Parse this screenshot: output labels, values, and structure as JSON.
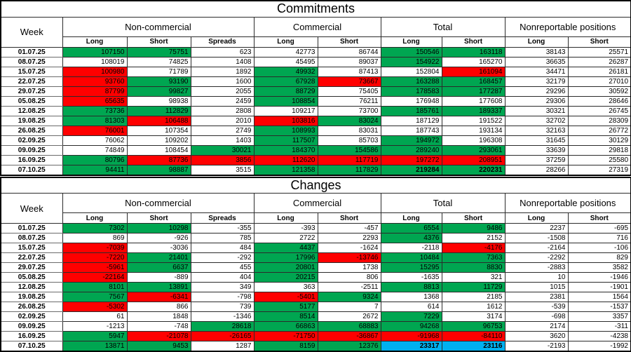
{
  "colors": {
    "green": "#00a651",
    "red": "#ff0000",
    "blue": "#00b0f0",
    "border": "#000000"
  },
  "header": {
    "week_label": "Week",
    "groups": [
      {
        "label": "Non-commercial",
        "cols": [
          "Long",
          "Short",
          "Spreads"
        ]
      },
      {
        "label": "Commercial",
        "cols": [
          "Long",
          "Short"
        ]
      },
      {
        "label": "Total",
        "cols": [
          "Long",
          "Short"
        ]
      },
      {
        "label": "Nonreportable positions",
        "cols": [
          "Long",
          "Short"
        ]
      }
    ]
  },
  "sections": [
    {
      "title": "Commitments",
      "rows": [
        {
          "week": "01.07.25",
          "values": [
            "107150",
            "75751",
            "623",
            "42773",
            "86744",
            "150546",
            "163118",
            "38143",
            "25571"
          ],
          "fills": "ggwwwggww",
          "bold": []
        },
        {
          "week": "08.07.25",
          "values": [
            "108019",
            "74825",
            "1408",
            "45495",
            "89037",
            "154922",
            "165270",
            "36635",
            "26287"
          ],
          "fills": "wwwwwgwww",
          "bold": []
        },
        {
          "week": "15.07.25",
          "values": [
            "100980",
            "71789",
            "1892",
            "49932",
            "87413",
            "152804",
            "161094",
            "34471",
            "26181"
          ],
          "fills": "rwwgwwrww",
          "bold": []
        },
        {
          "week": "22.07.25",
          "values": [
            "93760",
            "93190",
            "1600",
            "67928",
            "73667",
            "163288",
            "168457",
            "32179",
            "27010"
          ],
          "fills": "rgwgrggww",
          "bold": []
        },
        {
          "week": "29.07.25",
          "values": [
            "87799",
            "99827",
            "2055",
            "88729",
            "75405",
            "178583",
            "177287",
            "29296",
            "30592"
          ],
          "fills": "rgwgwggww",
          "bold": []
        },
        {
          "week": "05.08.25",
          "values": [
            "65635",
            "98938",
            "2459",
            "108854",
            "76211",
            "176948",
            "177608",
            "29306",
            "28646"
          ],
          "fills": "rwwgwwwww",
          "bold": []
        },
        {
          "week": "12.08.25",
          "values": [
            "73736",
            "112829",
            "2808",
            "109217",
            "73700",
            "185761",
            "189337",
            "30321",
            "26745"
          ],
          "fills": "ggwwwggww",
          "bold": []
        },
        {
          "week": "19.08.25",
          "values": [
            "81303",
            "106488",
            "2010",
            "103816",
            "83024",
            "187129",
            "191522",
            "32702",
            "28309"
          ],
          "fills": "grwrgwwww",
          "bold": []
        },
        {
          "week": "26.08.25",
          "values": [
            "76001",
            "107354",
            "2749",
            "108993",
            "83031",
            "187743",
            "193134",
            "32163",
            "26772"
          ],
          "fills": "rwwgwwwww",
          "bold": []
        },
        {
          "week": "02.09.25",
          "values": [
            "76062",
            "109202",
            "1403",
            "117507",
            "85703",
            "194972",
            "196308",
            "31645",
            "30129"
          ],
          "fills": "wwwgwgwww",
          "bold": []
        },
        {
          "week": "09.09.25",
          "values": [
            "74849",
            "108454",
            "30021",
            "184370",
            "154586",
            "289240",
            "293061",
            "33639",
            "29818"
          ],
          "fills": "wwgggggww",
          "bold": []
        },
        {
          "week": "16.09.25",
          "values": [
            "80796",
            "87736",
            "3856",
            "112620",
            "117719",
            "197272",
            "208951",
            "37259",
            "25580"
          ],
          "fills": "grrrrrrww",
          "bold": []
        },
        {
          "week": "07.10.25",
          "values": [
            "94411",
            "98887",
            "3515",
            "121358",
            "117829",
            "219284",
            "220231",
            "28266",
            "27319"
          ],
          "fills": "ggwggggww",
          "bold": [
            5,
            6
          ]
        }
      ]
    },
    {
      "title": "Changes",
      "rows": [
        {
          "week": "01.07.25",
          "values": [
            "7302",
            "10298",
            "-355",
            "-393",
            "-457",
            "6554",
            "9486",
            "2237",
            "-695"
          ],
          "fills": "ggwwwggww",
          "bold": []
        },
        {
          "week": "08.07.25",
          "values": [
            "869",
            "-926",
            "785",
            "2722",
            "2293",
            "4376",
            "2152",
            "-1508",
            "716"
          ],
          "fills": "wwwwwgwww",
          "bold": []
        },
        {
          "week": "15.07.25",
          "values": [
            "-7039",
            "-3036",
            "484",
            "4437",
            "-1624",
            "-2118",
            "-4176",
            "-2164",
            "-106"
          ],
          "fills": "rwwgwwrww",
          "bold": []
        },
        {
          "week": "22.07.25",
          "values": [
            "-7220",
            "21401",
            "-292",
            "17996",
            "-13746",
            "10484",
            "7363",
            "-2292",
            "829"
          ],
          "fills": "rgwgrggww",
          "bold": []
        },
        {
          "week": "29.07.25",
          "values": [
            "-5961",
            "6637",
            "455",
            "20801",
            "1738",
            "15295",
            "8830",
            "-2883",
            "3582"
          ],
          "fills": "rgwgwggww",
          "bold": []
        },
        {
          "week": "05.08.25",
          "values": [
            "-22164",
            "-889",
            "404",
            "20215",
            "806",
            "-1635",
            "321",
            "10",
            "-1946"
          ],
          "fills": "rwwgwwwww",
          "bold": []
        },
        {
          "week": "12.08.25",
          "values": [
            "8101",
            "13891",
            "349",
            "363",
            "-2511",
            "8813",
            "11729",
            "1015",
            "-1901"
          ],
          "fills": "ggwwwggww",
          "bold": []
        },
        {
          "week": "19.08.25",
          "values": [
            "7567",
            "-6341",
            "-798",
            "-5401",
            "9324",
            "1368",
            "2185",
            "2381",
            "1564"
          ],
          "fills": "grwrgwwww",
          "bold": []
        },
        {
          "week": "26.08.25",
          "values": [
            "-5302",
            "866",
            "739",
            "5177",
            "7",
            "614",
            "1612",
            "-539",
            "-1537"
          ],
          "fills": "rwwgwwwww",
          "bold": []
        },
        {
          "week": "02.09.25",
          "values": [
            "61",
            "1848",
            "-1346",
            "8514",
            "2672",
            "7229",
            "3174",
            "-698",
            "3357"
          ],
          "fills": "wwwgwgwww",
          "bold": []
        },
        {
          "week": "09.09.25",
          "values": [
            "-1213",
            "-748",
            "28618",
            "66863",
            "68883",
            "94268",
            "96753",
            "2174",
            "-311"
          ],
          "fills": "wwgggggww",
          "bold": []
        },
        {
          "week": "16.09.25",
          "values": [
            "5947",
            "-21078",
            "-26165",
            "-71750",
            "-36867",
            "-91968",
            "-84110",
            "3620",
            "-4238"
          ],
          "fills": "grrrrrrww",
          "bold": []
        },
        {
          "week": "07.10.25",
          "values": [
            "13871",
            "9453",
            "1287",
            "8159",
            "12376",
            "23317",
            "23116",
            "-2193",
            "-1992"
          ],
          "fills": "ggwggbbww",
          "bold": [
            5,
            6
          ]
        }
      ]
    }
  ]
}
